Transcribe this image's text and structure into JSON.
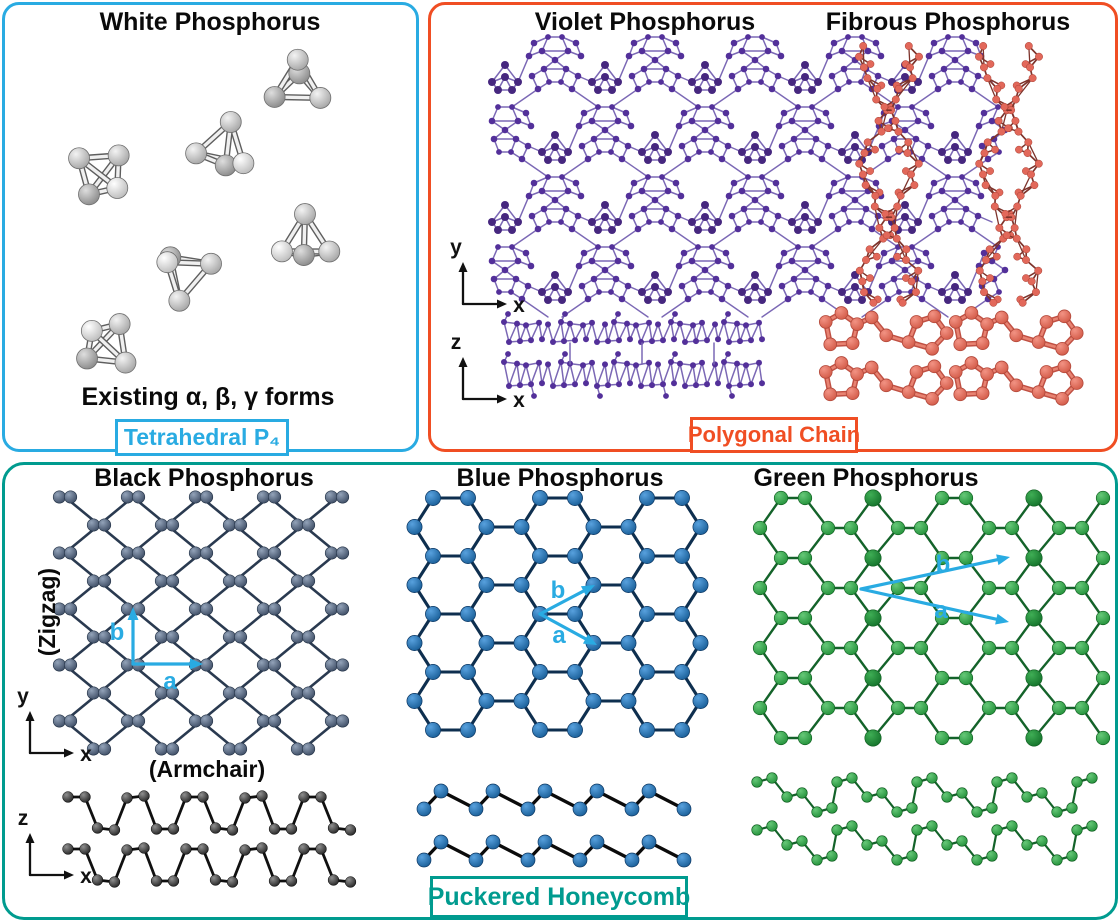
{
  "figure": {
    "background": "#FFFFFF",
    "panels": {
      "white": {
        "title": "White Phosphorus",
        "subtitle": "Existing α, β, γ forms",
        "tag": "Tetrahedral P₄",
        "accent": "#29ABE2",
        "atom_highlight": "#FFFFFF",
        "atom_shade": "#8E8E8E",
        "bond_color": "#5E5E5E"
      },
      "polygonal": {
        "tag": "Polygonal Chain",
        "accent": "#F04E23"
      },
      "violet": {
        "title": "Violet Phosphorus",
        "atom_color": "#53309A",
        "atom_dark": "#46277F",
        "bond_color": "#7B68B5"
      },
      "fibrous": {
        "title": "Fibrous Phosphorus",
        "atom_color": "#E2685A",
        "bond_color": "#7E332B",
        "thick_bond_color": "#C05043",
        "thick_bond_highlight": "#E88372"
      },
      "puckered": {
        "tag": "Puckered Honeycomb",
        "accent": "#009B8F"
      },
      "black": {
        "title": "Black Phosphorus",
        "zigzag_label": "(Zigzag)",
        "armchair_label": "(Armchair)",
        "atom_color": "#37475D",
        "bond_color": "#2A3A50",
        "side_atom_color": "#202020",
        "side_bond_color": "#101010"
      },
      "blue": {
        "title": "Blue Phosphorus",
        "atom_color": "#1B75BC",
        "bond_color": "#0E2F4F",
        "side_bond_color": "#0B0B0B"
      },
      "green": {
        "title": "Green Phosphorus",
        "atom_color": "#28A33C",
        "bond_color": "#14632A"
      }
    },
    "axes": {
      "x_label": "x",
      "y_label": "y",
      "z_label": "z",
      "color": "#111111"
    },
    "lattice_vectors": {
      "a_label": "a",
      "b_label": "b",
      "color": "#29ABE2"
    }
  }
}
